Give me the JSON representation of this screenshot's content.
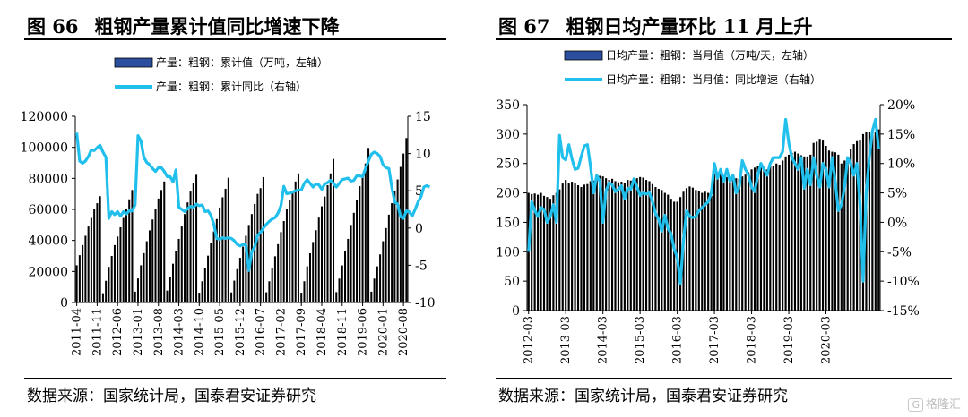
{
  "left": {
    "title_num": "图 66",
    "title_text": "粗钢产量累计值同比增速下降",
    "source": "数据来源：国家统计局，国泰君安证券研究",
    "chart_data": {
      "type": "bar",
      "legend": [
        "产量：粗钢：累计值（万吨，左轴）",
        "产量：粗钢：累计同比（右轴）"
      ],
      "colors": {
        "bar": "#2b4f9e",
        "line": "#21c0ec"
      },
      "start": "2011-04",
      "x_ticks": [
        "2011-04",
        "2011-11",
        "2012-06",
        "2013-01",
        "2013-08",
        "2014-03",
        "2014-10",
        "2015-05",
        "2015-12",
        "2016-07",
        "2017-02",
        "2017-09",
        "2018-04",
        "2018-11",
        "2019-06",
        "2020-01",
        "2020-08"
      ],
      "y_left": {
        "min": 0,
        "max": 120000,
        "ticks": [
          0,
          20000,
          40000,
          60000,
          80000,
          100000,
          120000
        ]
      },
      "y_right": {
        "min": -10,
        "max": 15,
        "ticks": [
          -10,
          -5,
          0,
          5,
          10,
          15
        ]
      },
      "bars": [
        24000,
        30500,
        37000,
        43000,
        49000,
        54500,
        60000,
        64000,
        68500,
        6000,
        14000,
        23000,
        30000,
        37000,
        42500,
        48500,
        54500,
        60500,
        66500,
        72500,
        7000,
        15500,
        24000,
        31800,
        39500,
        46500,
        53500,
        60500,
        67000,
        72500,
        78000,
        7700,
        16200,
        25000,
        33000,
        41000,
        49000,
        57000,
        64500,
        71500,
        77000,
        82300,
        6300,
        13700,
        22300,
        30200,
        38200,
        45800,
        53800,
        61200,
        67800,
        73300,
        80400,
        6500,
        14100,
        21500,
        28800,
        36000,
        43000,
        50000,
        57000,
        63500,
        70000,
        73700,
        80800,
        6600,
        13700,
        22100,
        29800,
        37600,
        45400,
        52500,
        60000,
        66000,
        72000,
        78000,
        83200,
        6300,
        13700,
        23300,
        31700,
        39000,
        46600,
        54700,
        62000,
        68300,
        75600,
        83200,
        92500,
        6700,
        15400,
        23900,
        32900,
        41000,
        50000,
        57800,
        66000,
        75000,
        82400,
        89600,
        99634,
        7000,
        15400,
        23300,
        31000,
        39500,
        48000,
        56600,
        64000,
        72000,
        79300,
        87400,
        96000,
        106000
      ],
      "line": [
        12.8,
        9.0,
        8.7,
        9.0,
        9.6,
        10.5,
        10.4,
        10.8,
        11.1,
        10.2,
        9.5,
        1.3,
        2.2,
        1.8,
        2.2,
        1.6,
        2.2,
        1.9,
        2.3,
        2.3,
        3.1,
        12.4,
        11.7,
        9.5,
        8.8,
        8.5,
        8.0,
        7.6,
        8.1,
        8.1,
        7.6,
        6.9,
        6.9,
        6.2,
        7.8,
        2.8,
        2.5,
        2.2,
        2.6,
        2.9,
        2.8,
        3.2,
        3.0,
        3.1,
        2.2,
        2.3,
        1.7,
        0.5,
        -1.4,
        -1.5,
        -1.3,
        -1.4,
        -1.3,
        -1.4,
        -1.7,
        -2.2,
        -2.4,
        -2.2,
        -2.3,
        -5.7,
        -3.2,
        -2.5,
        -1.0,
        -0.6,
        0.0,
        0.5,
        0.9,
        1.2,
        1.4,
        2.0,
        3.0,
        5.6,
        4.6,
        4.7,
        4.8,
        5.0,
        5.1,
        5.1,
        6.0,
        6.5,
        6.0,
        5.5,
        5.9,
        5.8,
        5.2,
        5.9,
        6.1,
        6.4,
        6.0,
        5.5,
        6.0,
        6.5,
        6.6,
        6.7,
        6.3,
        6.4,
        7.0,
        7.0,
        6.9,
        8.0,
        9.0,
        9.9,
        10.2,
        10.0,
        9.6,
        8.5,
        8.1,
        8.0,
        5.5,
        3.5,
        3.2,
        1.5,
        1.3,
        2.3,
        2.2,
        1.6,
        2.5,
        3.5,
        4.2,
        5.5,
        5.7,
        5.5
      ]
    }
  },
  "right": {
    "title_num": "图 67",
    "title_text": "粗钢日均产量环比 11 月上升",
    "source": "数据来源：国家统计局，国泰君安证券研究",
    "chart_data": {
      "type": "bar",
      "legend": [
        "日均产量：粗钢：当月值（万吨/天，左轴）",
        "日均产量：粗钢：当月值：同比增速（右轴）"
      ],
      "colors": {
        "bar": "#2b4f9e",
        "line": "#21c0ec"
      },
      "start": "2012-03",
      "x_ticks": [
        "2012-03",
        "2013-03",
        "2014-03",
        "2015-03",
        "2016-03",
        "2017-03",
        "2018-03",
        "2019-03",
        "2020-03"
      ],
      "y_left": {
        "min": 0,
        "max": 350,
        "ticks": [
          0,
          50,
          100,
          150,
          200,
          250,
          300,
          350
        ]
      },
      "y_right": {
        "min": -15,
        "max": 20,
        "ticks": [
          "-15%",
          "-10%",
          "-5%",
          "0%",
          "5%",
          "10%",
          "15%",
          "20%"
        ],
        "tick_values": [
          -15,
          -10,
          -5,
          0,
          5,
          10,
          15,
          20
        ]
      },
      "bars": [
        200,
        198,
        199,
        197,
        200,
        195,
        193,
        190,
        196,
        200,
        206,
        216,
        222,
        217,
        219,
        216,
        213,
        210,
        214,
        215,
        220,
        221,
        226,
        229,
        228,
        225,
        222,
        224,
        220,
        218,
        219,
        217,
        222,
        221,
        222,
        225,
        227,
        226,
        222,
        220,
        215,
        210,
        207,
        205,
        200,
        197,
        190,
        185,
        185,
        193,
        202,
        208,
        211,
        209,
        205,
        203,
        200,
        202,
        200,
        195,
        232,
        235,
        233,
        230,
        227,
        225,
        227,
        225,
        224,
        228,
        231,
        235,
        240,
        243,
        245,
        246,
        244,
        240,
        245,
        246,
        250,
        248,
        255,
        262,
        265,
        268,
        270,
        267,
        264,
        262,
        262,
        265,
        285,
        287,
        292,
        289,
        280,
        272,
        270,
        269,
        265,
        250,
        255,
        260,
        275,
        283,
        288,
        290,
        300,
        304,
        303,
        301,
        304,
        308
      ],
      "line": [
        -5.0,
        3.5,
        2.0,
        1.0,
        2.5,
        2.2,
        0.0,
        1.0,
        3.0,
        0.0,
        14.8,
        11.0,
        10.6,
        13.2,
        10.8,
        9.0,
        9.2,
        11.2,
        13.0,
        13.2,
        9.5,
        5.0,
        8.0,
        7.0,
        0.0,
        5.3,
        6.7,
        6.4,
        5.2,
        5.6,
        6.2,
        4.0,
        5.8,
        5.6,
        7.4,
        6.0,
        4.6,
        5.0,
        4.8,
        5.0,
        3.5,
        1.5,
        0.5,
        -1.5,
        1.2,
        -1.0,
        -2.0,
        -4.5,
        -6.0,
        -10.5,
        -3.0,
        2.0,
        1.0,
        0.8,
        1.0,
        2.0,
        2.5,
        3.0,
        3.5,
        5.0,
        10.0,
        7.5,
        9.0,
        7.0,
        9.0,
        7.0,
        8.0,
        5.0,
        6.0,
        10.5,
        9.0,
        8.0,
        6.0,
        5.2,
        8.0,
        10.0,
        9.0,
        8.0,
        10.0,
        11.0,
        11.0,
        11.0,
        12.0,
        17.5,
        13.5,
        11.0,
        10.0,
        9.0,
        11.0,
        5.8,
        9.0,
        6.4,
        11.0,
        8.0,
        6.0,
        10.0,
        9.0,
        6.0,
        11.0,
        7.0,
        2.0,
        3.0,
        6.0,
        11.0,
        10.0,
        8.0,
        10.0,
        3.0,
        -10.0,
        5.0,
        11.0,
        15.5,
        17.5,
        12.5
      ]
    }
  },
  "watermark": {
    "box": "G",
    "text": "格隆汇"
  }
}
